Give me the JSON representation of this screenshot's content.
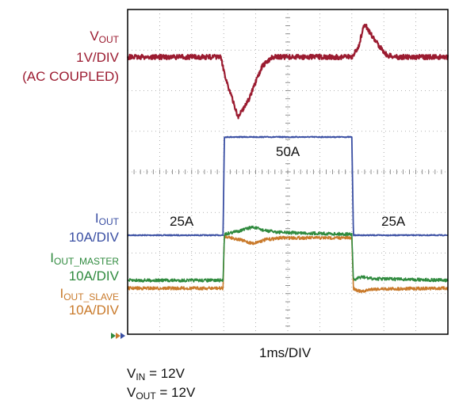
{
  "chart_data": {
    "type": "line",
    "xlabel": "1ms/DIV",
    "time_ms": [
      0,
      10
    ],
    "left_labels": {
      "vout": {
        "main": "V",
        "sub": "OUT",
        "scale": "1V/DIV",
        "note": "(AC COUPLED)"
      },
      "iout": {
        "main": "I",
        "sub": "OUT",
        "scale": "10A/DIV"
      },
      "iout_master": {
        "main": "I",
        "sub": "OUT_MASTER",
        "scale": "10A/DIV"
      },
      "iout_slave": {
        "main": "I",
        "sub": "OUT_SLAVE",
        "scale": "10A/DIV"
      }
    },
    "annotations": {
      "load_high": "50A",
      "load_low_left": "25A",
      "load_low_right": "25A"
    },
    "conditions": {
      "vin": {
        "main": "V",
        "sub": "IN",
        "value": " = 12V"
      },
      "vout": {
        "main": "V",
        "sub": "OUT",
        "value": " = 12V"
      }
    },
    "series": [
      {
        "name": "VOUT",
        "color": "#9b1b30",
        "unit_per_div": "1V",
        "points": [
          [
            0,
            0
          ],
          [
            2.9,
            0
          ],
          [
            3.1,
            -0.8
          ],
          [
            3.45,
            -1.9
          ],
          [
            3.8,
            -1.3
          ],
          [
            4.2,
            -0.3
          ],
          [
            4.5,
            0
          ],
          [
            7.0,
            0
          ],
          [
            7.2,
            0.3
          ],
          [
            7.4,
            1.05
          ],
          [
            7.7,
            0.55
          ],
          [
            8.1,
            0.05
          ],
          [
            8.4,
            0
          ],
          [
            10,
            0
          ]
        ]
      },
      {
        "name": "IOUT",
        "color": "#3a4fa3",
        "unit_per_div": "10A",
        "points": [
          [
            0,
            25
          ],
          [
            2.98,
            25
          ],
          [
            3.02,
            50
          ],
          [
            7.0,
            50
          ],
          [
            7.05,
            25
          ],
          [
            10,
            25
          ]
        ]
      },
      {
        "name": "IOUT_MASTER",
        "color": "#2f8a3e",
        "unit_per_div": "10A",
        "points": [
          [
            0,
            12.5
          ],
          [
            2.98,
            12.5
          ],
          [
            3.02,
            25.5
          ],
          [
            3.5,
            26.5
          ],
          [
            3.9,
            27.5
          ],
          [
            4.3,
            26.5
          ],
          [
            4.8,
            26
          ],
          [
            7.0,
            25.5
          ],
          [
            7.05,
            12.5
          ],
          [
            7.3,
            13.5
          ],
          [
            7.6,
            13
          ],
          [
            10,
            12.5
          ]
        ]
      },
      {
        "name": "IOUT_SLAVE",
        "color": "#c97a2b",
        "unit_per_div": "10A",
        "points": [
          [
            0,
            12
          ],
          [
            2.98,
            12
          ],
          [
            3.02,
            26
          ],
          [
            3.5,
            25
          ],
          [
            3.9,
            24
          ],
          [
            4.3,
            25
          ],
          [
            4.8,
            25.5
          ],
          [
            7.0,
            25.5
          ],
          [
            7.05,
            12
          ],
          [
            7.3,
            11
          ],
          [
            7.6,
            11.8
          ],
          [
            10,
            12
          ]
        ]
      }
    ]
  }
}
